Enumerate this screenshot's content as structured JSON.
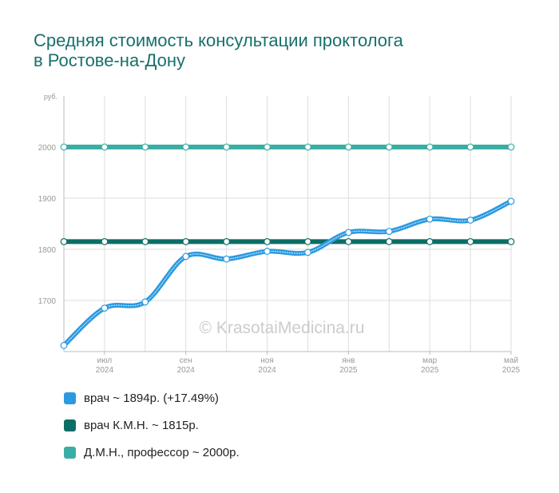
{
  "title": {
    "line1": "Средняя стоимость консультации проктолога",
    "line2": "в Ростове-на-Дону"
  },
  "watermark": "© KrasotaiMedicina.ru",
  "colors": {
    "title": "#17706b",
    "doctor": "#2b9ae0",
    "candidate": "#0d6e66",
    "professor": "#3aaea5",
    "grid": "#dddddd",
    "tick_text": "#999999"
  },
  "chart_data": {
    "type": "line",
    "y_unit": "руб.",
    "ylim": [
      1600,
      2100
    ],
    "y_ticks": [
      1700,
      1800,
      1900,
      2000
    ],
    "x": [
      "2024-06",
      "2024-07",
      "2024-08",
      "2024-09",
      "2024-10",
      "2024-11",
      "2024-12",
      "2025-01",
      "2025-02",
      "2025-03",
      "2025-04",
      "2025-05"
    ],
    "x_tick_labels": [
      {
        "index": 1,
        "month": "июл",
        "year": "2024"
      },
      {
        "index": 3,
        "month": "сен",
        "year": "2024"
      },
      {
        "index": 5,
        "month": "ноя",
        "year": "2024"
      },
      {
        "index": 7,
        "month": "янв",
        "year": "2025"
      },
      {
        "index": 9,
        "month": "мар",
        "year": "2025"
      },
      {
        "index": 11,
        "month": "май",
        "year": "2025"
      }
    ],
    "grid": true,
    "legend_position": "bottom",
    "series": [
      {
        "key": "doctor",
        "name": "врач ~ 1894р. (+17.49%)",
        "color": "#2b9ae0",
        "values": [
          1612,
          1685,
          1697,
          1786,
          1781,
          1796,
          1794,
          1833,
          1835,
          1859,
          1857,
          1894
        ]
      },
      {
        "key": "candidate",
        "name": "врач К.М.Н. ~ 1815р.",
        "color": "#0d6e66",
        "values": [
          1815,
          1815,
          1815,
          1815,
          1815,
          1815,
          1815,
          1815,
          1815,
          1815,
          1815,
          1815
        ]
      },
      {
        "key": "professor",
        "name": "Д.М.Н., профессор ~ 2000р.",
        "color": "#3aaea5",
        "values": [
          2000,
          2000,
          2000,
          2000,
          2000,
          2000,
          2000,
          2000,
          2000,
          2000,
          2000,
          2000
        ]
      }
    ]
  }
}
